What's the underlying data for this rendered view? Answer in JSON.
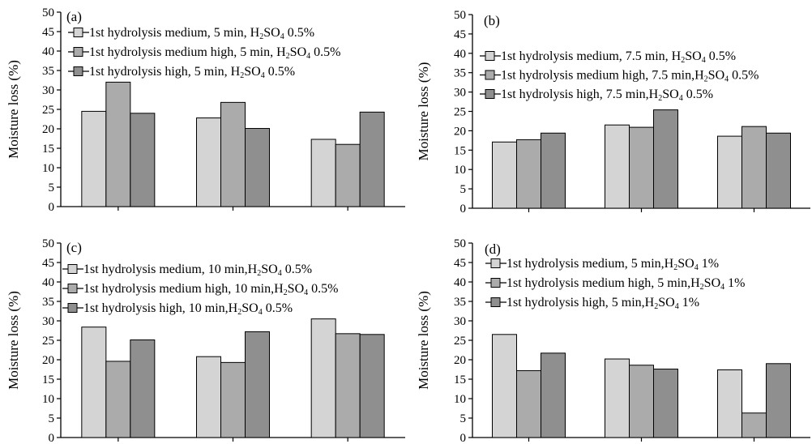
{
  "chart_data": [
    {
      "type": "bar",
      "panel_label": "(a)",
      "ylabel": "Moisture loss (%)",
      "ylim": [
        0,
        50
      ],
      "yticks": [
        "0",
        "5",
        "10",
        "15",
        "20",
        "25",
        "30",
        "35",
        "40",
        "45",
        "50"
      ],
      "categories": [
        "",
        "",
        ""
      ],
      "series": [
        {
          "color": "#d4d4d4",
          "legend": {
            "pre": "1st hydrolysis medium, 5 min, H",
            "s1": "2",
            "mid": "SO",
            "s2": "4",
            "post": " 0.5%"
          },
          "values": [
            24.5,
            22.8,
            17.3
          ]
        },
        {
          "color": "#ababab",
          "legend": {
            "pre": "1st hydrolysis medium high, 5 min, H",
            "s1": "2",
            "mid": "SO",
            "s2": "4",
            "post": " 0.5%"
          },
          "values": [
            32.0,
            26.8,
            16.0
          ]
        },
        {
          "color": "#8f8f8f",
          "legend": {
            "pre": "1st hydrolysis high, 5 min, H",
            "s1": "2",
            "mid": "SO",
            "s2": "4",
            "post": " 0.5%"
          },
          "values": [
            24.0,
            20.1,
            24.3
          ]
        }
      ]
    },
    {
      "type": "bar",
      "panel_label": "(b)",
      "ylabel": "Moisture loss (%)",
      "ylim": [
        0,
        50
      ],
      "yticks": [
        "0",
        "5",
        "10",
        "15",
        "20",
        "25",
        "30",
        "35",
        "40",
        "45",
        "50"
      ],
      "categories": [
        "",
        "",
        ""
      ],
      "series": [
        {
          "color": "#d4d4d4",
          "legend": {
            "pre": "1st hydrolysis medium, 7.5 min, H",
            "s1": "2",
            "mid": "SO",
            "s2": "4",
            "post": " 0.5%"
          },
          "values": [
            17.1,
            21.5,
            18.6
          ]
        },
        {
          "color": "#ababab",
          "legend": {
            "pre": "1st hydrolysis medium high, 7.5 min,H",
            "s1": "2",
            "mid": "SO",
            "s2": "4",
            "post": " 0.5%"
          },
          "values": [
            17.7,
            20.9,
            21.1
          ]
        },
        {
          "color": "#8f8f8f",
          "legend": {
            "pre": "1st hydrolysis high, 7.5 min,H",
            "s1": "2",
            "mid": "SO",
            "s2": "4",
            "post": " 0.5%"
          },
          "values": [
            19.4,
            25.4,
            19.4
          ]
        }
      ]
    },
    {
      "type": "bar",
      "panel_label": "(c)",
      "ylabel": "Moisture loss (%)",
      "ylim": [
        0,
        50
      ],
      "yticks": [
        "0",
        "5",
        "10",
        "15",
        "20",
        "25",
        "30",
        "35",
        "40",
        "45",
        "50"
      ],
      "categories": [
        "",
        "",
        ""
      ],
      "series": [
        {
          "color": "#d4d4d4",
          "legend": {
            "pre": "1st hydrolysis medium, 10 min,H",
            "s1": "2",
            "mid": "SO",
            "s2": "4",
            "post": " 0.5%"
          },
          "values": [
            28.4,
            20.8,
            30.5
          ]
        },
        {
          "color": "#ababab",
          "legend": {
            "pre": "1st hydrolysis medium high, 10 min,H",
            "s1": "2",
            "mid": "SO",
            "s2": "4",
            "post": " 0.5%"
          },
          "values": [
            19.6,
            19.3,
            26.7
          ]
        },
        {
          "color": "#8f8f8f",
          "legend": {
            "pre": "1st hydrolysis high, 10 min,H",
            "s1": "2",
            "mid": "SO",
            "s2": "4",
            "post": " 0.5%"
          },
          "values": [
            25.1,
            27.2,
            26.5
          ]
        }
      ]
    },
    {
      "type": "bar",
      "panel_label": "(d)",
      "ylabel": "Moisture loss (%)",
      "ylim": [
        0,
        50
      ],
      "yticks": [
        "0",
        "5",
        "10",
        "15",
        "20",
        "25",
        "30",
        "35",
        "40",
        "45",
        "50"
      ],
      "categories": [
        "",
        "",
        ""
      ],
      "series": [
        {
          "color": "#d4d4d4",
          "legend": {
            "pre": "1st hydrolysis medium, 5 min,H",
            "s1": "2",
            "mid": "SO",
            "s2": "4",
            "post": " 1%"
          },
          "values": [
            26.5,
            20.2,
            17.4
          ]
        },
        {
          "color": "#ababab",
          "legend": {
            "pre": "1st hydrolysis medium high, 5 min,H",
            "s1": "2",
            "mid": "SO",
            "s2": "4",
            "post": " 1%"
          },
          "values": [
            17.2,
            18.6,
            6.3
          ]
        },
        {
          "color": "#8f8f8f",
          "legend": {
            "pre": "1st hydrolysis high, 5 min,H",
            "s1": "2",
            "mid": "SO",
            "s2": "4",
            "post": " 1%"
          },
          "values": [
            21.7,
            17.6,
            19.0
          ]
        }
      ]
    }
  ]
}
